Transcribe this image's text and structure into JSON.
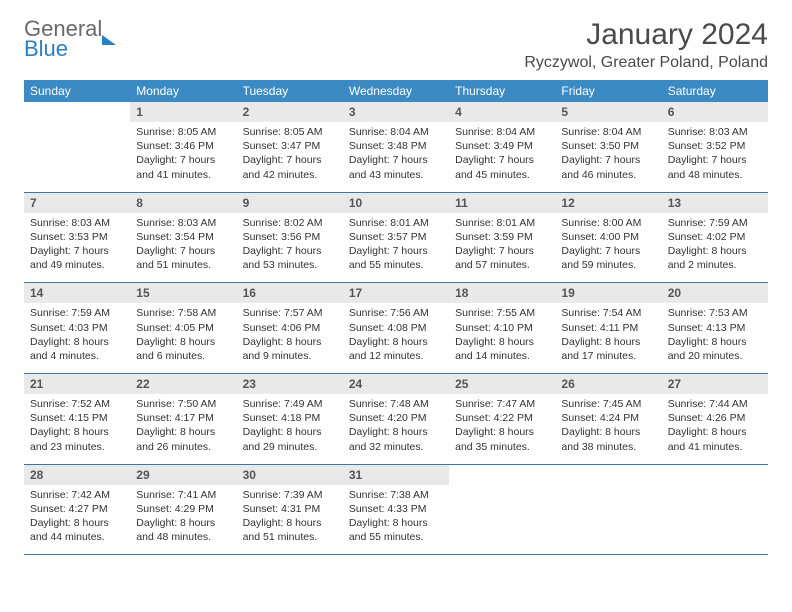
{
  "logo": {
    "line1": "General",
    "line2": "Blue"
  },
  "title": "January 2024",
  "location": "Ryczywol, Greater Poland, Poland",
  "dayNames": [
    "Sunday",
    "Monday",
    "Tuesday",
    "Wednesday",
    "Thursday",
    "Friday",
    "Saturday"
  ],
  "colors": {
    "header_bg": "#3b8ac4",
    "header_text": "#ffffff",
    "daynum_bg": "#e9e9e9",
    "border": "#3b78a8",
    "logo_gray": "#6a6a6a",
    "logo_blue": "#2a7ec2"
  },
  "weeks": [
    [
      {
        "n": "",
        "sr": "",
        "ss": "",
        "dl": ""
      },
      {
        "n": "1",
        "sr": "Sunrise: 8:05 AM",
        "ss": "Sunset: 3:46 PM",
        "dl": "Daylight: 7 hours and 41 minutes."
      },
      {
        "n": "2",
        "sr": "Sunrise: 8:05 AM",
        "ss": "Sunset: 3:47 PM",
        "dl": "Daylight: 7 hours and 42 minutes."
      },
      {
        "n": "3",
        "sr": "Sunrise: 8:04 AM",
        "ss": "Sunset: 3:48 PM",
        "dl": "Daylight: 7 hours and 43 minutes."
      },
      {
        "n": "4",
        "sr": "Sunrise: 8:04 AM",
        "ss": "Sunset: 3:49 PM",
        "dl": "Daylight: 7 hours and 45 minutes."
      },
      {
        "n": "5",
        "sr": "Sunrise: 8:04 AM",
        "ss": "Sunset: 3:50 PM",
        "dl": "Daylight: 7 hours and 46 minutes."
      },
      {
        "n": "6",
        "sr": "Sunrise: 8:03 AM",
        "ss": "Sunset: 3:52 PM",
        "dl": "Daylight: 7 hours and 48 minutes."
      }
    ],
    [
      {
        "n": "7",
        "sr": "Sunrise: 8:03 AM",
        "ss": "Sunset: 3:53 PM",
        "dl": "Daylight: 7 hours and 49 minutes."
      },
      {
        "n": "8",
        "sr": "Sunrise: 8:03 AM",
        "ss": "Sunset: 3:54 PM",
        "dl": "Daylight: 7 hours and 51 minutes."
      },
      {
        "n": "9",
        "sr": "Sunrise: 8:02 AM",
        "ss": "Sunset: 3:56 PM",
        "dl": "Daylight: 7 hours and 53 minutes."
      },
      {
        "n": "10",
        "sr": "Sunrise: 8:01 AM",
        "ss": "Sunset: 3:57 PM",
        "dl": "Daylight: 7 hours and 55 minutes."
      },
      {
        "n": "11",
        "sr": "Sunrise: 8:01 AM",
        "ss": "Sunset: 3:59 PM",
        "dl": "Daylight: 7 hours and 57 minutes."
      },
      {
        "n": "12",
        "sr": "Sunrise: 8:00 AM",
        "ss": "Sunset: 4:00 PM",
        "dl": "Daylight: 7 hours and 59 minutes."
      },
      {
        "n": "13",
        "sr": "Sunrise: 7:59 AM",
        "ss": "Sunset: 4:02 PM",
        "dl": "Daylight: 8 hours and 2 minutes."
      }
    ],
    [
      {
        "n": "14",
        "sr": "Sunrise: 7:59 AM",
        "ss": "Sunset: 4:03 PM",
        "dl": "Daylight: 8 hours and 4 minutes."
      },
      {
        "n": "15",
        "sr": "Sunrise: 7:58 AM",
        "ss": "Sunset: 4:05 PM",
        "dl": "Daylight: 8 hours and 6 minutes."
      },
      {
        "n": "16",
        "sr": "Sunrise: 7:57 AM",
        "ss": "Sunset: 4:06 PM",
        "dl": "Daylight: 8 hours and 9 minutes."
      },
      {
        "n": "17",
        "sr": "Sunrise: 7:56 AM",
        "ss": "Sunset: 4:08 PM",
        "dl": "Daylight: 8 hours and 12 minutes."
      },
      {
        "n": "18",
        "sr": "Sunrise: 7:55 AM",
        "ss": "Sunset: 4:10 PM",
        "dl": "Daylight: 8 hours and 14 minutes."
      },
      {
        "n": "19",
        "sr": "Sunrise: 7:54 AM",
        "ss": "Sunset: 4:11 PM",
        "dl": "Daylight: 8 hours and 17 minutes."
      },
      {
        "n": "20",
        "sr": "Sunrise: 7:53 AM",
        "ss": "Sunset: 4:13 PM",
        "dl": "Daylight: 8 hours and 20 minutes."
      }
    ],
    [
      {
        "n": "21",
        "sr": "Sunrise: 7:52 AM",
        "ss": "Sunset: 4:15 PM",
        "dl": "Daylight: 8 hours and 23 minutes."
      },
      {
        "n": "22",
        "sr": "Sunrise: 7:50 AM",
        "ss": "Sunset: 4:17 PM",
        "dl": "Daylight: 8 hours and 26 minutes."
      },
      {
        "n": "23",
        "sr": "Sunrise: 7:49 AM",
        "ss": "Sunset: 4:18 PM",
        "dl": "Daylight: 8 hours and 29 minutes."
      },
      {
        "n": "24",
        "sr": "Sunrise: 7:48 AM",
        "ss": "Sunset: 4:20 PM",
        "dl": "Daylight: 8 hours and 32 minutes."
      },
      {
        "n": "25",
        "sr": "Sunrise: 7:47 AM",
        "ss": "Sunset: 4:22 PM",
        "dl": "Daylight: 8 hours and 35 minutes."
      },
      {
        "n": "26",
        "sr": "Sunrise: 7:45 AM",
        "ss": "Sunset: 4:24 PM",
        "dl": "Daylight: 8 hours and 38 minutes."
      },
      {
        "n": "27",
        "sr": "Sunrise: 7:44 AM",
        "ss": "Sunset: 4:26 PM",
        "dl": "Daylight: 8 hours and 41 minutes."
      }
    ],
    [
      {
        "n": "28",
        "sr": "Sunrise: 7:42 AM",
        "ss": "Sunset: 4:27 PM",
        "dl": "Daylight: 8 hours and 44 minutes."
      },
      {
        "n": "29",
        "sr": "Sunrise: 7:41 AM",
        "ss": "Sunset: 4:29 PM",
        "dl": "Daylight: 8 hours and 48 minutes."
      },
      {
        "n": "30",
        "sr": "Sunrise: 7:39 AM",
        "ss": "Sunset: 4:31 PM",
        "dl": "Daylight: 8 hours and 51 minutes."
      },
      {
        "n": "31",
        "sr": "Sunrise: 7:38 AM",
        "ss": "Sunset: 4:33 PM",
        "dl": "Daylight: 8 hours and 55 minutes."
      },
      {
        "n": "",
        "sr": "",
        "ss": "",
        "dl": ""
      },
      {
        "n": "",
        "sr": "",
        "ss": "",
        "dl": ""
      },
      {
        "n": "",
        "sr": "",
        "ss": "",
        "dl": ""
      }
    ]
  ]
}
